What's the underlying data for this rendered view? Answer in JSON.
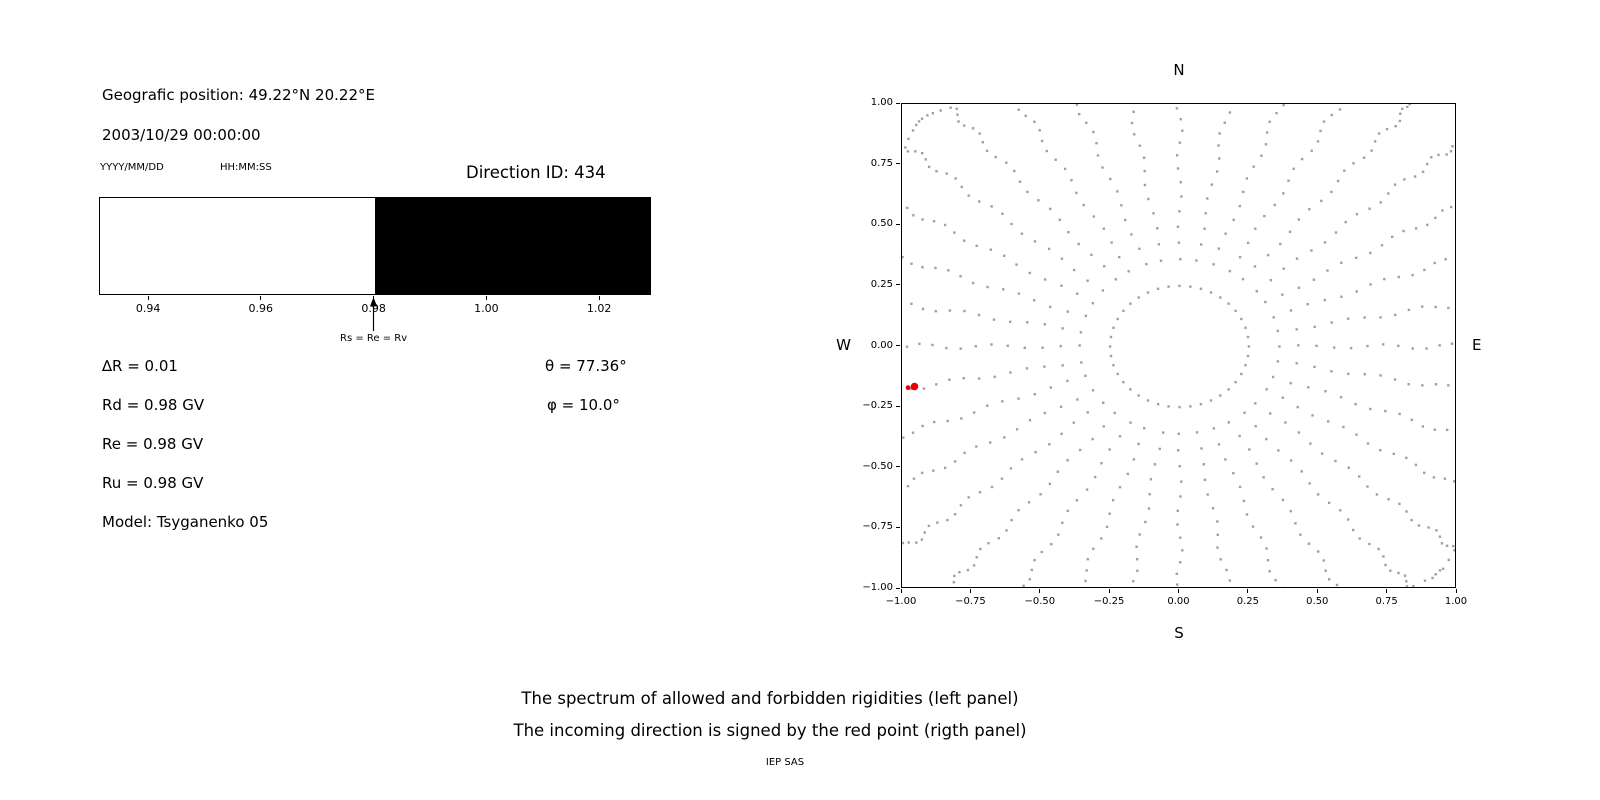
{
  "left_panel": {
    "geo_position": "Geografic position: 49.22°N 20.22°E",
    "datetime": "2003/10/29 00:00:00",
    "date_format": "YYYY/MM/DD",
    "time_format": "HH:MM:SS",
    "direction_id": "Direction ID: 434",
    "spectrum": {
      "annotation": "Rs = Re = Rv"
    },
    "values": {
      "delta_r": "∆R = 0.01",
      "rd": "Rd = 0.98 GV",
      "re": "Re = 0.98 GV",
      "ru": "Ru = 0.98 GV",
      "model": "Model: Tsyganenko 05",
      "theta": "θ = 77.36°",
      "phi": "φ = 10.0°"
    }
  },
  "right_panel": {
    "compass": {
      "n": "N",
      "s": "S",
      "e": "E",
      "w": "W"
    }
  },
  "caption": {
    "line1": "The spectrum of allowed and forbidden rigidities (left panel)",
    "line2": "The incoming direction is signed by the red point (rigth panel)",
    "credit": "IEP SAS"
  },
  "chart_data": [
    {
      "type": "bar",
      "title": "Spectrum of allowed (white) and forbidden (black) rigidities",
      "x_range": [
        0.9313,
        1.0292
      ],
      "bands": [
        {
          "label": "allowed",
          "from": 0.9313,
          "to": 0.98,
          "color": "#ffffff"
        },
        {
          "label": "forbidden",
          "from": 0.98,
          "to": 1.0292,
          "color": "#000000"
        }
      ],
      "xticks": [
        0.94,
        0.96,
        0.98,
        1.0,
        1.02
      ],
      "xtick_labels": [
        "0.94",
        "0.96",
        "0.98",
        "1.00",
        "1.02"
      ],
      "annotation": {
        "text": "Rs = Re = Rv",
        "x": 0.98
      },
      "values": {
        "delta_R": 0.01,
        "Rd_GV": 0.98,
        "Re_GV": 0.98,
        "Ru_GV": 0.98
      }
    },
    {
      "type": "scatter",
      "xlim": [
        -1,
        1
      ],
      "ylim": [
        -1,
        1
      ],
      "ticks": {
        "values": [
          -1.0,
          -0.75,
          -0.5,
          -0.25,
          0.0,
          0.25,
          0.5,
          0.75,
          1.0
        ],
        "labels": [
          "−1.00",
          "−0.75",
          "−0.50",
          "−0.25",
          "0.00",
          "0.25",
          "0.50",
          "0.75",
          "1.00"
        ]
      },
      "compass": {
        "top": "N",
        "bottom": "S",
        "left": "W",
        "right": "E"
      },
      "gray_pattern": {
        "color": "#a0a0a0",
        "dot_size": 2.4,
        "inner_ring": {
          "radius": 0.25,
          "points": 40
        },
        "spokes": {
          "count": 36,
          "start_angle_deg": 0,
          "step_deg": 10,
          "r_start": 0.36,
          "r_end": 1.32,
          "points_per_spoke": 26,
          "tip_clustering_exponent": 1.8,
          "tip_hook_deg": 6,
          "tip_hook_start_t": 0.8
        }
      },
      "red_points": [
        {
          "x": -0.978,
          "y": -0.17,
          "r": 2.4,
          "color": "#e60000"
        },
        {
          "x": -0.955,
          "y": -0.165,
          "r": 3.8,
          "color": "#e60000"
        }
      ],
      "incoming_direction": {
        "theta_deg": 77.36,
        "phi_deg": 10.0
      }
    }
  ]
}
